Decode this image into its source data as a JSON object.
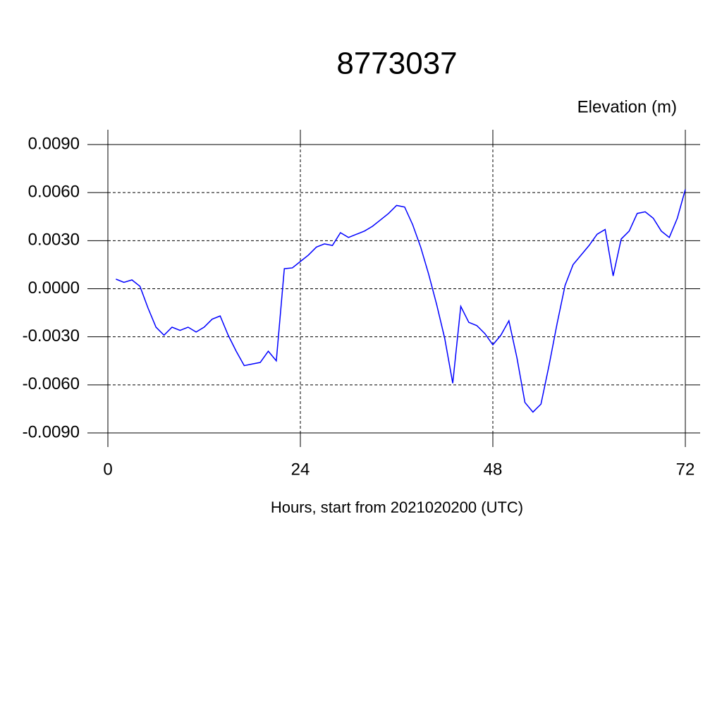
{
  "chart_data": {
    "type": "line",
    "title": "8773037",
    "subtitle": "Elevation (m)",
    "x_label": "Hours, start from 2021020200 (UTC)",
    "x": [
      1,
      2,
      3,
      4,
      5,
      6,
      7,
      8,
      9,
      10,
      11,
      12,
      13,
      14,
      15,
      16,
      17,
      18,
      19,
      20,
      21,
      22,
      23,
      24,
      25,
      26,
      27,
      28,
      29,
      30,
      31,
      32,
      33,
      34,
      35,
      36,
      37,
      38,
      39,
      40,
      41,
      42,
      43,
      44,
      45,
      46,
      47,
      48,
      49,
      50,
      51,
      52,
      53,
      54,
      55,
      56,
      57,
      58,
      59,
      60,
      61,
      62,
      63,
      64,
      65,
      66,
      67,
      68,
      69,
      70,
      71,
      72
    ],
    "series": [
      {
        "name": "Elevation",
        "color": "#0000ff",
        "values": [
          0.0006,
          0.0004,
          0.00055,
          0.00015,
          -0.0012,
          -0.0024,
          -0.0029,
          -0.0024,
          -0.0026,
          -0.0024,
          -0.0027,
          -0.0024,
          -0.0019,
          -0.0017,
          -0.0029,
          -0.0039,
          -0.0048,
          -0.0047,
          -0.0046,
          -0.0039,
          -0.0045,
          0.00125,
          0.0013,
          0.0017,
          0.0021,
          0.0026,
          0.0028,
          0.0027,
          0.0035,
          0.0032,
          0.0034,
          0.0036,
          0.0039,
          0.0043,
          0.0047,
          0.0052,
          0.0051,
          0.004,
          0.0026,
          0.0009,
          -0.001,
          -0.0031,
          -0.0059,
          -0.0011,
          -0.0021,
          -0.0023,
          -0.0028,
          -0.0035,
          -0.0029,
          -0.002,
          -0.0043,
          -0.0071,
          -0.0077,
          -0.0072,
          -0.0048,
          -0.0022,
          0.0002,
          0.0015,
          0.0021,
          0.0027,
          0.0034,
          0.0037,
          0.0008,
          0.0031,
          0.0036,
          0.0047,
          0.0048,
          0.0044,
          0.0036,
          0.0032,
          0.0044,
          0.0062
        ]
      }
    ],
    "xlim": [
      0,
      72
    ],
    "xticks": [
      0,
      24,
      48,
      72
    ],
    "ylim": [
      -0.009,
      0.009
    ],
    "yticks": [
      {
        "value": -0.009,
        "label": "-0.0090"
      },
      {
        "value": -0.006,
        "label": "-0.0060"
      },
      {
        "value": -0.003,
        "label": "-0.0030"
      },
      {
        "value": 0,
        "label": "0.0000"
      },
      {
        "value": 0.003,
        "label": "0.0030"
      },
      {
        "value": 0.006,
        "label": "0.0060"
      },
      {
        "value": 0.009,
        "label": "0.0090"
      }
    ],
    "grid": true
  }
}
